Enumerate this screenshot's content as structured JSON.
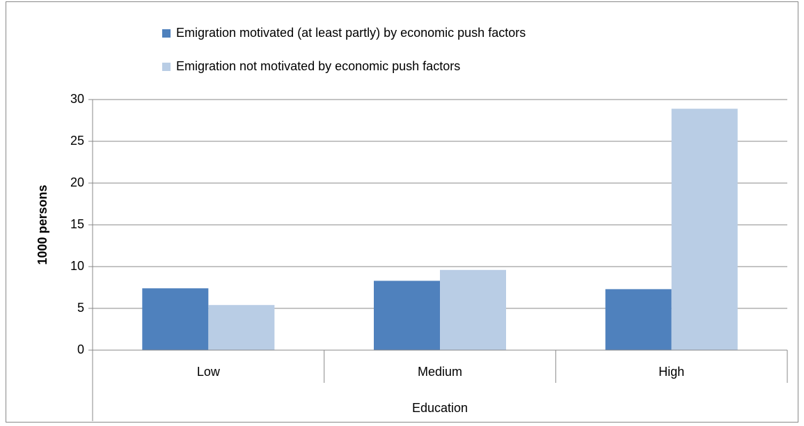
{
  "chart_data": {
    "type": "bar",
    "y_label": "1000 persons",
    "x_label": "Education",
    "categories": [
      "Low",
      "Medium",
      "High"
    ],
    "series": [
      {
        "name": "Emigration motivated (at least partly) by economic push factors",
        "color": "#4f81bd",
        "values": [
          7.4,
          8.3,
          7.3
        ]
      },
      {
        "name": "Emigration not motivated  by economic push factors",
        "color": "#b9cde5",
        "values": [
          5.4,
          9.6,
          28.9
        ]
      }
    ],
    "ylim": [
      0,
      30
    ],
    "yticks": [
      0,
      5,
      10,
      15,
      20,
      25,
      30
    ],
    "grid": true,
    "legend": "top"
  }
}
